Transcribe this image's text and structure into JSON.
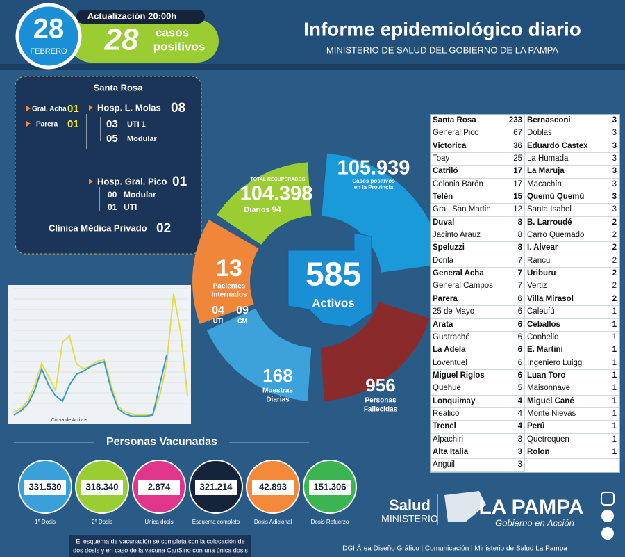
{
  "header": {
    "day": "28",
    "month": "FEBRERO",
    "update": "Actualización 20:00h",
    "cases_number": "28",
    "cases_label": [
      "casos",
      "positivos"
    ],
    "title": "Informe epidemiológico diario",
    "subtitle": "MINISTERIO DE SALUD DEL GOBIERNO DE LA PAMPA"
  },
  "hospitals": {
    "title": "Santa Rosa",
    "gral_acha": {
      "label": "Gral. Acha",
      "value": "01"
    },
    "parera": {
      "label": "Parera",
      "value": "01"
    },
    "molas": {
      "label": "Hosp. L. Molas",
      "value": "08",
      "uti": {
        "value": "03",
        "label": "UTI 1"
      },
      "modular": {
        "value": "05",
        "label": "Modular"
      }
    },
    "pico": {
      "label": "Hosp. Gral. Pico",
      "value": "01",
      "modular": {
        "value": "00",
        "label": "Modular"
      },
      "uti": {
        "value": "01",
        "label": "UTI"
      }
    },
    "clinica": {
      "label": "Clínica Médica Privado",
      "value": "02"
    }
  },
  "curve": {
    "label": "Curva de Activos",
    "ylim": [
      0,
      1200
    ],
    "series": [
      {
        "color": "#e3dc45",
        "values": [
          50,
          80,
          150,
          300,
          500,
          380,
          250,
          700,
          760,
          500,
          450,
          480,
          520,
          540,
          300,
          100,
          50,
          30,
          20,
          20,
          30,
          200,
          500,
          1150,
          800,
          200
        ]
      },
      {
        "color": "#3a9ad9",
        "values": [
          20,
          60,
          120,
          250,
          450,
          300,
          200,
          150,
          300,
          400,
          430,
          470,
          500,
          520,
          260,
          80,
          30,
          10,
          10,
          10,
          20,
          300,
          580,
          null,
          null,
          null
        ]
      }
    ]
  },
  "summary": {
    "recuperados": {
      "label": "TOTAL RECUPERADOS",
      "value": "104.398",
      "daily_label": "Diarios",
      "daily": "94"
    },
    "casos": {
      "value": "105.939",
      "lines": [
        "Casos positivos",
        "en la Provincia"
      ]
    },
    "internados": {
      "value": "13",
      "lines": [
        "Pacientes",
        "Internados"
      ],
      "uti": {
        "value": "04",
        "label": "UTI"
      },
      "cm": {
        "value": "09",
        "label": "CM"
      }
    },
    "muestras": {
      "value": "168",
      "lines": [
        "Muestras",
        "Diarias"
      ]
    },
    "fallecidos": {
      "value": "956",
      "lines": [
        "Personas",
        "Fallecidas"
      ]
    },
    "activos": {
      "value": "585",
      "label": "Activos"
    }
  },
  "localities": {
    "left": [
      [
        "Santa Rosa",
        233
      ],
      [
        "General Pico",
        67
      ],
      [
        "Victorica",
        36
      ],
      [
        "Toay",
        25
      ],
      [
        "Catriló",
        17
      ],
      [
        "Colonia Barón",
        17
      ],
      [
        "Telén",
        15
      ],
      [
        "Gral. San Martin",
        12
      ],
      [
        "Duval",
        8
      ],
      [
        "Jacinto Arauz",
        8
      ],
      [
        "Speluzzi",
        8
      ],
      [
        "Dorila",
        7
      ],
      [
        "General Acha",
        7
      ],
      [
        "General Campos",
        7
      ],
      [
        "Parera",
        6
      ],
      [
        "25 de Mayo",
        6
      ],
      [
        "Arata",
        6
      ],
      [
        "Guatraché",
        6
      ],
      [
        "La Adela",
        6
      ],
      [
        "Loventuel",
        6
      ],
      [
        "Miguel Riglos",
        6
      ],
      [
        "Quehue",
        5
      ],
      [
        "Lonquimay",
        4
      ],
      [
        "Realico",
        4
      ],
      [
        "Trenel",
        4
      ],
      [
        "Alpachiri",
        3
      ],
      [
        "Alta Italia",
        3
      ],
      [
        "Anguil",
        3
      ]
    ],
    "right": [
      [
        "Bernasconi",
        3
      ],
      [
        "Doblas",
        3
      ],
      [
        "Eduardo Castex",
        3
      ],
      [
        "La Humada",
        3
      ],
      [
        "La Maruja",
        3
      ],
      [
        "Macachín",
        3
      ],
      [
        "Quemú Quemú",
        3
      ],
      [
        "Santa Isabel",
        3
      ],
      [
        "B. Larroudé",
        2
      ],
      [
        "Carro Quemado",
        2
      ],
      [
        "I. Alvear",
        2
      ],
      [
        "Rancul",
        2
      ],
      [
        "Uriburu",
        2
      ],
      [
        "Vertiz",
        2
      ],
      [
        "Villa Mirasol",
        2
      ],
      [
        "Caleufú",
        1
      ],
      [
        "Ceballos",
        1
      ],
      [
        "Conhello",
        1
      ],
      [
        "E. Martini",
        1
      ],
      [
        "Ingeniero Luiggi",
        1
      ],
      [
        "Luan Toro",
        1
      ],
      [
        "Maisonnave",
        1
      ],
      [
        "Miguel Cané",
        1
      ],
      [
        "Monte Nievas",
        1
      ],
      [
        "Perú",
        1
      ],
      [
        "Quetrequen",
        1
      ],
      [
        "Rolon",
        1
      ]
    ]
  },
  "vaccines": {
    "title": "Personas Vacunadas",
    "items": [
      {
        "value": "331.530",
        "label": "1° Dosis",
        "color": "#3aa0d9"
      },
      {
        "value": "318.340",
        "label": "2° Dosis",
        "color": "#9acd32"
      },
      {
        "value": "2.874",
        "label": "Única dosis",
        "color": "#e0358a"
      },
      {
        "value": "321.214",
        "label": "Esquema completo",
        "color": "#15243b"
      },
      {
        "value": "42.893",
        "label": "Dosis Adicional",
        "color": "#f5893a"
      },
      {
        "value": "151.306",
        "label": "Dosis Refuerzo",
        "color": "#3cb551"
      }
    ],
    "note": [
      "El esquema de vacunación se completa con la colocación de",
      "dos dosis y en caso de la vacuna CanSino con una única dosis"
    ]
  },
  "footer": {
    "salud": "Salud",
    "ministerio": "MINISTERIO",
    "brand": "LA PAMPA",
    "tagline": "Gobierno en Acción",
    "credits": "DGI Área Diseño Gráfico  |  Comunicación  |  Ministerio de Salud La Pampa"
  }
}
